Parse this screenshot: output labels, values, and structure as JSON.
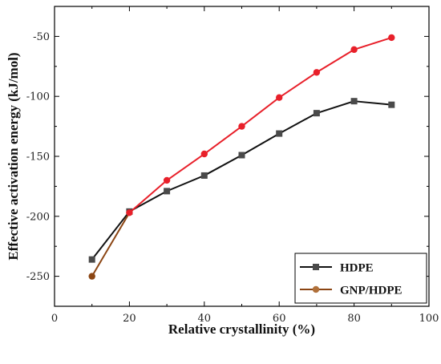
{
  "chart_data": {
    "type": "line",
    "title": "",
    "xlabel": "Relative crystallinity (%)",
    "ylabel": "Effective activation energy (kJ/mol)",
    "xlim": [
      0,
      100
    ],
    "ylim": [
      -275,
      -25
    ],
    "x_ticks": [
      0,
      20,
      40,
      60,
      80,
      100
    ],
    "y_ticks": [
      -250,
      -200,
      -150,
      -100,
      -50
    ],
    "x_tick_labels": [
      "0",
      "20",
      "40",
      "60",
      "80",
      "100"
    ],
    "y_tick_labels": [
      "-250",
      "-200",
      "-150",
      "-100",
      "-50"
    ],
    "grid": false,
    "legend_position": "bottom-right",
    "series": [
      {
        "name": "HDPE",
        "color": "#111111",
        "marker": "square",
        "marker_color": "#4a4a4a",
        "x": [
          10,
          20,
          30,
          40,
          50,
          60,
          70,
          80,
          90
        ],
        "y": [
          -236,
          -196,
          -179,
          -166,
          -149,
          -131,
          -114,
          -104,
          -107
        ]
      },
      {
        "name": "GNP/HDPE",
        "color": "#e8202a",
        "marker": "circle",
        "marker_color": "#e8202a",
        "legend_color": "#8b4513",
        "legend_marker_color": "#b0703a",
        "first_segment_color": "#8b4513",
        "x": [
          10,
          20,
          30,
          40,
          50,
          60,
          70,
          80,
          90
        ],
        "y": [
          -250,
          -197,
          -170,
          -148,
          -125,
          -101,
          -80,
          -61,
          -51
        ]
      }
    ]
  }
}
